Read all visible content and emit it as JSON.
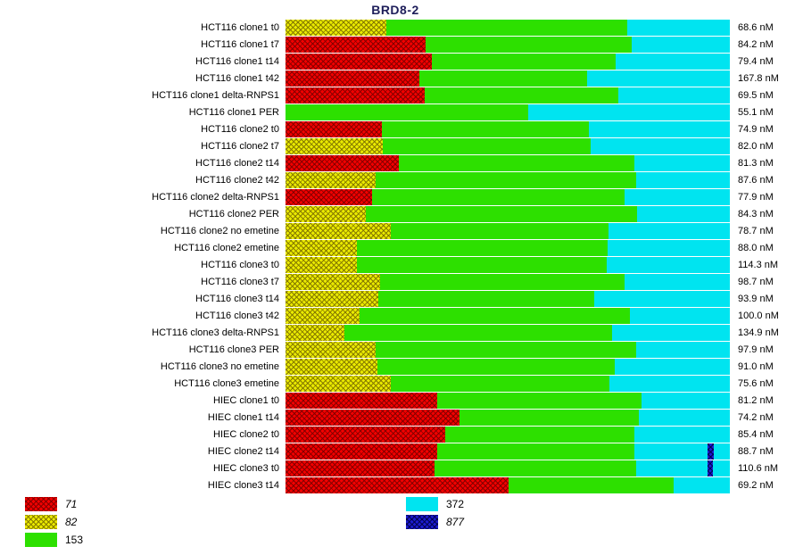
{
  "title": "BRD8-2",
  "title_color": "#1e1e5a",
  "unit": "nM",
  "series": [
    {
      "name": "71",
      "color": "#f20000",
      "pattern": true,
      "italic": true
    },
    {
      "name": "82",
      "color": "#eaea00",
      "pattern": true,
      "italic": true
    },
    {
      "name": "153",
      "color": "#2de000",
      "pattern": false,
      "italic": false
    },
    {
      "name": "372",
      "color": "#00e4f0",
      "pattern": false,
      "italic": false
    },
    {
      "name": "877",
      "color": "#1b1bd0",
      "pattern": true,
      "italic": true
    }
  ],
  "legend": {
    "columns": [
      [
        "71",
        "82",
        "153"
      ],
      [
        "372",
        "877"
      ]
    ]
  },
  "chart_data": {
    "type": "bar",
    "orientation": "horizontal",
    "stacked": true,
    "normalized_percent": true,
    "grid": false,
    "legend_position": "bottom",
    "title": "BRD8-2",
    "series_names": [
      "71",
      "82",
      "153",
      "372",
      "877"
    ],
    "rows": [
      {
        "label": "HCT116 clone1 t0",
        "value": "68.6 nM",
        "segments": [
          {
            "series": "82",
            "pct": 22.7
          },
          {
            "series": "153",
            "pct": 54.2
          },
          {
            "series": "372",
            "pct": 23.1
          }
        ]
      },
      {
        "label": "HCT116 clone1 t7",
        "value": "84.2 nM",
        "segments": [
          {
            "series": "71",
            "pct": 31.5
          },
          {
            "series": "153",
            "pct": 46.4
          },
          {
            "series": "372",
            "pct": 22.1
          }
        ]
      },
      {
        "label": "HCT116 clone1 t14",
        "value": "79.4 nM",
        "segments": [
          {
            "series": "71",
            "pct": 32.9
          },
          {
            "series": "153",
            "pct": 41.4
          },
          {
            "series": "372",
            "pct": 25.7
          }
        ]
      },
      {
        "label": "HCT116 clone1 t42",
        "value": "167.8 nM",
        "segments": [
          {
            "series": "71",
            "pct": 30.1
          },
          {
            "series": "153",
            "pct": 37.8
          },
          {
            "series": "372",
            "pct": 32.1
          }
        ]
      },
      {
        "label": "HCT116 clone1 delta-RNPS1",
        "value": "69.5 nM",
        "segments": [
          {
            "series": "71",
            "pct": 31.3
          },
          {
            "series": "153",
            "pct": 43.6
          },
          {
            "series": "372",
            "pct": 25.1
          }
        ]
      },
      {
        "label": "HCT116 clone1 PER",
        "value": "55.1 nM",
        "segments": [
          {
            "series": "153",
            "pct": 54.6
          },
          {
            "series": "372",
            "pct": 45.4
          }
        ]
      },
      {
        "label": "HCT116 clone2 t0",
        "value": "74.9 nM",
        "segments": [
          {
            "series": "71",
            "pct": 21.7
          },
          {
            "series": "153",
            "pct": 46.6
          },
          {
            "series": "372",
            "pct": 31.7
          }
        ]
      },
      {
        "label": "HCT116 clone2 t7",
        "value": "82.0 nM",
        "segments": [
          {
            "series": "82",
            "pct": 21.9
          },
          {
            "series": "153",
            "pct": 46.8
          },
          {
            "series": "372",
            "pct": 31.3
          }
        ]
      },
      {
        "label": "HCT116 clone2 t14",
        "value": "81.3 nM",
        "segments": [
          {
            "series": "71",
            "pct": 25.5
          },
          {
            "series": "153",
            "pct": 53.0
          },
          {
            "series": "372",
            "pct": 21.5
          }
        ]
      },
      {
        "label": "HCT116 clone2 t42",
        "value": "87.6 nM",
        "segments": [
          {
            "series": "82",
            "pct": 20.3
          },
          {
            "series": "153",
            "pct": 58.6
          },
          {
            "series": "372",
            "pct": 21.1
          }
        ]
      },
      {
        "label": "HCT116 clone2 delta-RNPS1",
        "value": "77.9 nM",
        "segments": [
          {
            "series": "71",
            "pct": 19.5
          },
          {
            "series": "153",
            "pct": 56.8
          },
          {
            "series": "372",
            "pct": 23.7
          }
        ]
      },
      {
        "label": "HCT116 clone2 PER",
        "value": "84.3 nM",
        "segments": [
          {
            "series": "82",
            "pct": 18.1
          },
          {
            "series": "153",
            "pct": 61.0
          },
          {
            "series": "372",
            "pct": 20.9
          }
        ]
      },
      {
        "label": "HCT116 clone2 no emetine",
        "value": "78.7 nM",
        "segments": [
          {
            "series": "82",
            "pct": 23.7
          },
          {
            "series": "153",
            "pct": 49.0
          },
          {
            "series": "372",
            "pct": 27.3
          }
        ]
      },
      {
        "label": "HCT116 clone2 emetine",
        "value": "88.0 nM",
        "segments": [
          {
            "series": "82",
            "pct": 16.1
          },
          {
            "series": "153",
            "pct": 56.4
          },
          {
            "series": "372",
            "pct": 27.5
          }
        ]
      },
      {
        "label": "HCT116 clone3 t0",
        "value": "114.3 nM",
        "segments": [
          {
            "series": "82",
            "pct": 16.1
          },
          {
            "series": "153",
            "pct": 56.2
          },
          {
            "series": "372",
            "pct": 27.7
          }
        ]
      },
      {
        "label": "HCT116 clone3 t7",
        "value": "98.7 nM",
        "segments": [
          {
            "series": "82",
            "pct": 21.3
          },
          {
            "series": "153",
            "pct": 55.0
          },
          {
            "series": "372",
            "pct": 23.7
          }
        ]
      },
      {
        "label": "HCT116 clone3 t14",
        "value": "93.9 nM",
        "segments": [
          {
            "series": "82",
            "pct": 20.9
          },
          {
            "series": "153",
            "pct": 48.6
          },
          {
            "series": "372",
            "pct": 30.5
          }
        ]
      },
      {
        "label": "HCT116 clone3 t42",
        "value": "100.0 nM",
        "segments": [
          {
            "series": "82",
            "pct": 16.7
          },
          {
            "series": "153",
            "pct": 60.8
          },
          {
            "series": "372",
            "pct": 22.5
          }
        ]
      },
      {
        "label": "HCT116 clone3 delta-RNPS1",
        "value": "134.9 nM",
        "segments": [
          {
            "series": "82",
            "pct": 13.3
          },
          {
            "series": "153",
            "pct": 60.2
          },
          {
            "series": "372",
            "pct": 26.5
          }
        ]
      },
      {
        "label": "HCT116 clone3 PER",
        "value": "97.9 nM",
        "segments": [
          {
            "series": "82",
            "pct": 20.3
          },
          {
            "series": "153",
            "pct": 58.6
          },
          {
            "series": "372",
            "pct": 21.1
          }
        ]
      },
      {
        "label": "HCT116 clone3 no emetine",
        "value": "91.0 nM",
        "segments": [
          {
            "series": "82",
            "pct": 20.7
          },
          {
            "series": "153",
            "pct": 53.4
          },
          {
            "series": "372",
            "pct": 25.9
          }
        ]
      },
      {
        "label": "HCT116 clone3 emetine",
        "value": "75.6 nM",
        "segments": [
          {
            "series": "82",
            "pct": 23.7
          },
          {
            "series": "153",
            "pct": 49.2
          },
          {
            "series": "372",
            "pct": 27.1
          }
        ]
      },
      {
        "label": "HIEC clone1 t0",
        "value": "81.2 nM",
        "segments": [
          {
            "series": "71",
            "pct": 34.1
          },
          {
            "series": "153",
            "pct": 46.0
          },
          {
            "series": "372",
            "pct": 19.9
          }
        ]
      },
      {
        "label": "HIEC clone1 t14",
        "value": "74.2 nM",
        "segments": [
          {
            "series": "71",
            "pct": 39.2
          },
          {
            "series": "153",
            "pct": 40.4
          },
          {
            "series": "372",
            "pct": 20.4
          }
        ]
      },
      {
        "label": "HIEC clone2 t0",
        "value": "85.4 nM",
        "segments": [
          {
            "series": "71",
            "pct": 35.9
          },
          {
            "series": "153",
            "pct": 42.6
          },
          {
            "series": "372",
            "pct": 21.5
          }
        ]
      },
      {
        "label": "HIEC clone2 t14",
        "value": "88.7 nM",
        "segments": [
          {
            "series": "71",
            "pct": 34.1
          },
          {
            "series": "153",
            "pct": 44.4
          },
          {
            "series": "372",
            "pct": 16.5
          },
          {
            "series": "877",
            "pct": 1.4
          },
          {
            "series": "372",
            "pct": 3.6
          }
        ]
      },
      {
        "label": "HIEC clone3 t0",
        "value": "110.6 nM",
        "segments": [
          {
            "series": "71",
            "pct": 33.5
          },
          {
            "series": "153",
            "pct": 45.4
          },
          {
            "series": "372",
            "pct": 16.1
          },
          {
            "series": "877",
            "pct": 1.2
          },
          {
            "series": "372",
            "pct": 3.8
          }
        ]
      },
      {
        "label": "HIEC clone3 t14",
        "value": "69.2 nM",
        "segments": [
          {
            "series": "71",
            "pct": 50.2
          },
          {
            "series": "153",
            "pct": 37.1
          },
          {
            "series": "372",
            "pct": 12.7
          }
        ]
      }
    ]
  }
}
